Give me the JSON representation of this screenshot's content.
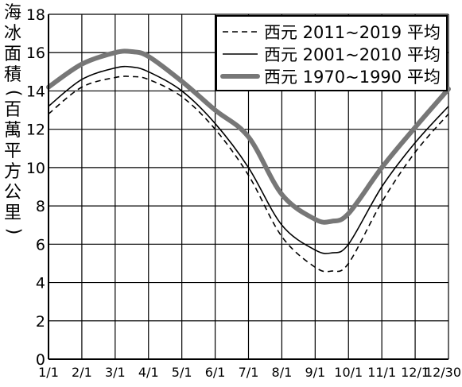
{
  "chart_data": {
    "type": "line",
    "title": "",
    "ylabel": "海冰面積(百萬平方公里)",
    "ylabel_chars": [
      "海",
      "冰",
      "面",
      "積",
      "(",
      "百",
      "萬",
      "平",
      "方",
      "公",
      "里",
      ")"
    ],
    "xlabel": "",
    "x_ticks": [
      "1/1",
      "2/1",
      "3/1",
      "4/1",
      "5/1",
      "6/1",
      "7/1",
      "8/1",
      "9/1",
      "10/1",
      "11/1",
      "12/1",
      "12/30"
    ],
    "y_ticks": [
      0,
      2,
      4,
      6,
      8,
      10,
      12,
      14,
      16,
      18
    ],
    "ylim": [
      0,
      18
    ],
    "grid": true,
    "legend_position": "top-right",
    "series": [
      {
        "name": "西元 2011~2019 平均",
        "style": "dashed",
        "x": [
          0,
          1,
          2,
          2.5,
          3,
          4,
          5,
          6,
          7,
          8,
          8.5,
          9,
          10,
          11,
          12
        ],
        "values": [
          12.8,
          14.2,
          14.7,
          14.75,
          14.6,
          13.7,
          12.0,
          9.6,
          6.4,
          4.8,
          4.6,
          5.0,
          8.2,
          10.8,
          12.8
        ]
      },
      {
        "name": "西元 2001~2010 平均",
        "style": "solid-thin",
        "x": [
          0,
          1,
          2,
          2.5,
          3,
          4,
          5,
          6,
          7,
          8,
          8.5,
          9,
          10,
          11,
          12
        ],
        "values": [
          13.2,
          14.6,
          15.2,
          15.25,
          15.0,
          14.0,
          12.3,
          10.0,
          7.0,
          5.7,
          5.55,
          6.0,
          9.0,
          11.3,
          13.2
        ]
      },
      {
        "name": "西元 1970~1990 平均",
        "style": "solid-thick",
        "x": [
          0,
          1,
          2,
          2.5,
          3,
          4,
          5,
          6,
          7,
          8,
          8.5,
          9,
          10,
          11,
          12
        ],
        "values": [
          14.2,
          15.4,
          16.0,
          16.05,
          15.8,
          14.5,
          13.0,
          11.6,
          8.6,
          7.3,
          7.2,
          7.6,
          10.0,
          12.1,
          14.1
        ]
      }
    ]
  }
}
